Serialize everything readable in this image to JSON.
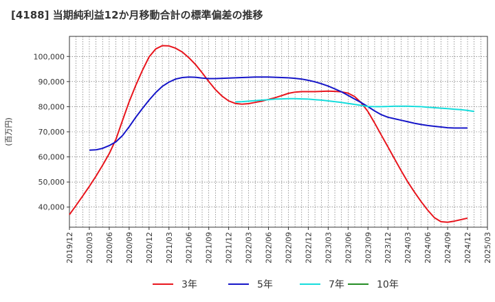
{
  "chart_data": {
    "type": "line",
    "title": "[4188]  当期純利益12か月移動合計の標準偏差の推移",
    "ylabel": "(百万円)",
    "ylim": [
      32000,
      108000
    ],
    "yticks": [
      40000,
      50000,
      60000,
      70000,
      80000,
      90000,
      100000
    ],
    "ytick_labels": [
      "40,000",
      "50,000",
      "60,000",
      "70,000",
      "80,000",
      "90,000",
      "100,000"
    ],
    "x_tick_labels": [
      "2019/12",
      "2020/03",
      "2020/06",
      "2020/09",
      "2020/12",
      "2021/03",
      "2021/06",
      "2021/09",
      "2021/12",
      "2022/03",
      "2022/06",
      "2022/09",
      "2022/12",
      "2023/03",
      "2023/06",
      "2023/09",
      "2023/12",
      "2024/03",
      "2024/06",
      "2024/09",
      "2024/12",
      "2025/03"
    ],
    "grid": true,
    "legend_position": "bottom",
    "series": [
      {
        "name": "3年",
        "color": "#e8141c",
        "points": [
          [
            "2019/12",
            37000
          ],
          [
            "2020/01",
            40700
          ],
          [
            "2020/02",
            44400
          ],
          [
            "2020/03",
            48300
          ],
          [
            "2020/04",
            52300
          ],
          [
            "2020/05",
            56700
          ],
          [
            "2020/06",
            61300
          ],
          [
            "2020/07",
            67000
          ],
          [
            "2020/08",
            74500
          ],
          [
            "2020/09",
            82000
          ],
          [
            "2020/10",
            88500
          ],
          [
            "2020/11",
            94500
          ],
          [
            "2020/12",
            99800
          ],
          [
            "2021/01",
            103000
          ],
          [
            "2021/02",
            104300
          ],
          [
            "2021/03",
            104200
          ],
          [
            "2021/04",
            103300
          ],
          [
            "2021/05",
            101800
          ],
          [
            "2021/06",
            99500
          ],
          [
            "2021/07",
            96800
          ],
          [
            "2021/08",
            93500
          ],
          [
            "2021/09",
            90000
          ],
          [
            "2021/10",
            86800
          ],
          [
            "2021/11",
            84200
          ],
          [
            "2021/12",
            82300
          ],
          [
            "2022/01",
            81300
          ],
          [
            "2022/02",
            81000
          ],
          [
            "2022/03",
            81200
          ],
          [
            "2022/04",
            81700
          ],
          [
            "2022/05",
            82200
          ],
          [
            "2022/06",
            82900
          ],
          [
            "2022/07",
            83600
          ],
          [
            "2022/08",
            84400
          ],
          [
            "2022/09",
            85300
          ],
          [
            "2022/10",
            85800
          ],
          [
            "2022/11",
            86000
          ],
          [
            "2022/12",
            86000
          ],
          [
            "2023/01",
            86000
          ],
          [
            "2023/02",
            86100
          ],
          [
            "2023/03",
            86200
          ],
          [
            "2023/04",
            86100
          ],
          [
            "2023/05",
            85900
          ],
          [
            "2023/06",
            85400
          ],
          [
            "2023/07",
            84000
          ],
          [
            "2023/08",
            81500
          ],
          [
            "2023/09",
            78000
          ],
          [
            "2023/10",
            73500
          ],
          [
            "2023/11",
            68700
          ],
          [
            "2023/12",
            64000
          ],
          [
            "2024/01",
            59200
          ],
          [
            "2024/02",
            54500
          ],
          [
            "2024/03",
            50000
          ],
          [
            "2024/04",
            46000
          ],
          [
            "2024/05",
            42200
          ],
          [
            "2024/06",
            38800
          ],
          [
            "2024/07",
            35800
          ],
          [
            "2024/08",
            34200
          ],
          [
            "2024/09",
            34000
          ],
          [
            "2024/10",
            34400
          ],
          [
            "2024/11",
            35000
          ],
          [
            "2024/12",
            35600
          ]
        ]
      },
      {
        "name": "5年",
        "color": "#1414c8",
        "points": [
          [
            "2020/03",
            62700
          ],
          [
            "2020/04",
            62800
          ],
          [
            "2020/05",
            63400
          ],
          [
            "2020/06",
            64500
          ],
          [
            "2020/07",
            66000
          ],
          [
            "2020/08",
            68500
          ],
          [
            "2020/09",
            72000
          ],
          [
            "2020/10",
            75800
          ],
          [
            "2020/11",
            79300
          ],
          [
            "2020/12",
            82600
          ],
          [
            "2021/01",
            85600
          ],
          [
            "2021/02",
            88100
          ],
          [
            "2021/03",
            89800
          ],
          [
            "2021/04",
            91000
          ],
          [
            "2021/05",
            91600
          ],
          [
            "2021/06",
            91800
          ],
          [
            "2021/07",
            91700
          ],
          [
            "2021/08",
            91400
          ],
          [
            "2021/09",
            91200
          ],
          [
            "2021/10",
            91200
          ],
          [
            "2021/11",
            91300
          ],
          [
            "2021/12",
            91400
          ],
          [
            "2022/01",
            91500
          ],
          [
            "2022/02",
            91600
          ],
          [
            "2022/03",
            91700
          ],
          [
            "2022/04",
            91800
          ],
          [
            "2022/05",
            91800
          ],
          [
            "2022/06",
            91800
          ],
          [
            "2022/07",
            91700
          ],
          [
            "2022/08",
            91600
          ],
          [
            "2022/09",
            91500
          ],
          [
            "2022/10",
            91300
          ],
          [
            "2022/11",
            91000
          ],
          [
            "2022/12",
            90500
          ],
          [
            "2023/01",
            89900
          ],
          [
            "2023/02",
            89100
          ],
          [
            "2023/03",
            88200
          ],
          [
            "2023/04",
            87100
          ],
          [
            "2023/05",
            85900
          ],
          [
            "2023/06",
            84500
          ],
          [
            "2023/07",
            83000
          ],
          [
            "2023/08",
            81600
          ],
          [
            "2023/09",
            80000
          ],
          [
            "2023/10",
            78300
          ],
          [
            "2023/11",
            76800
          ],
          [
            "2023/12",
            75800
          ],
          [
            "2024/01",
            75200
          ],
          [
            "2024/02",
            74600
          ],
          [
            "2024/03",
            74000
          ],
          [
            "2024/04",
            73400
          ],
          [
            "2024/05",
            72900
          ],
          [
            "2024/06",
            72500
          ],
          [
            "2024/07",
            72200
          ],
          [
            "2024/08",
            71900
          ],
          [
            "2024/09",
            71600
          ],
          [
            "2024/10",
            71500
          ],
          [
            "2024/11",
            71500
          ],
          [
            "2024/12",
            71500
          ]
        ]
      },
      {
        "name": "7年",
        "color": "#14dcdc",
        "points": [
          [
            "2022/01",
            81900
          ],
          [
            "2022/02",
            82000
          ],
          [
            "2022/03",
            82200
          ],
          [
            "2022/04",
            82400
          ],
          [
            "2022/05",
            82600
          ],
          [
            "2022/06",
            82800
          ],
          [
            "2022/07",
            83000
          ],
          [
            "2022/08",
            83100
          ],
          [
            "2022/09",
            83200
          ],
          [
            "2022/10",
            83200
          ],
          [
            "2022/11",
            83100
          ],
          [
            "2022/12",
            83000
          ],
          [
            "2023/01",
            82800
          ],
          [
            "2023/02",
            82600
          ],
          [
            "2023/03",
            82300
          ],
          [
            "2023/04",
            82000
          ],
          [
            "2023/05",
            81700
          ],
          [
            "2023/06",
            81300
          ],
          [
            "2023/07",
            80900
          ],
          [
            "2023/08",
            80500
          ],
          [
            "2023/09",
            80100
          ],
          [
            "2023/10",
            80000
          ],
          [
            "2023/11",
            80000
          ],
          [
            "2023/12",
            80100
          ],
          [
            "2024/01",
            80200
          ],
          [
            "2024/02",
            80200
          ],
          [
            "2024/03",
            80200
          ],
          [
            "2024/04",
            80100
          ],
          [
            "2024/05",
            80000
          ],
          [
            "2024/06",
            79800
          ],
          [
            "2024/07",
            79600
          ],
          [
            "2024/08",
            79400
          ],
          [
            "2024/09",
            79200
          ],
          [
            "2024/10",
            79000
          ],
          [
            "2024/11",
            78800
          ],
          [
            "2024/12",
            78500
          ],
          [
            "2025/01",
            78100
          ]
        ]
      },
      {
        "name": "10年",
        "color": "#228b22",
        "points": []
      }
    ]
  }
}
